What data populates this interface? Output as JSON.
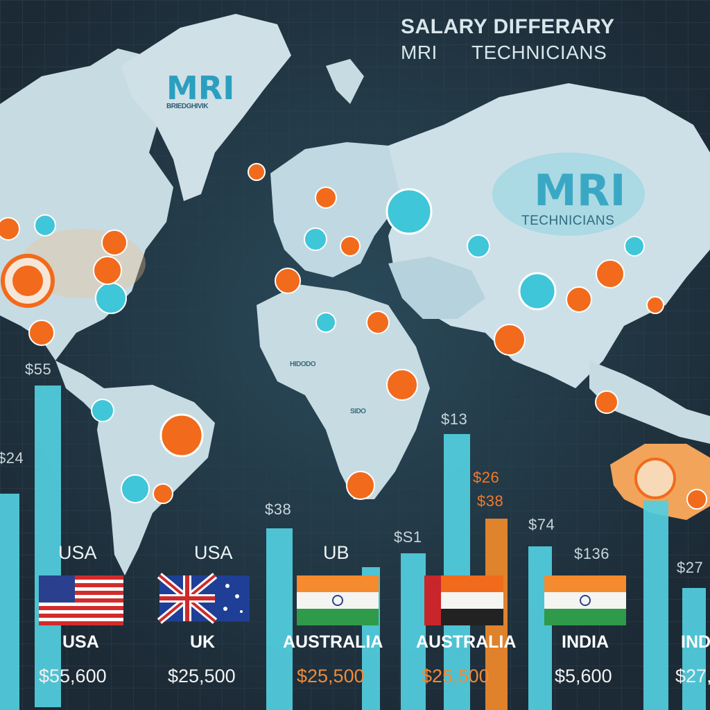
{
  "title": {
    "line1": "SALARY DIFFERARY",
    "line2": "MRI      TECHNICIANS"
  },
  "map_labels": {
    "greenland_mri": "MRI",
    "greenland_sub": "BRIEDGHIVIK",
    "asia_mri": "MRI",
    "asia_technicians": "TECHNICIANS",
    "africa_sub1": "HIDODO",
    "africa_sub2": "SIDO"
  },
  "colors": {
    "background": "#1f2e3a",
    "bar_teal": "#52cfe0",
    "bar_orange": "#f08a2a",
    "land": "#c9dde6",
    "marker_orange": "#f26a1b",
    "marker_teal": "#3fc6d8"
  },
  "chart_data": {
    "type": "bar",
    "bar_value_labels": [
      "$55",
      "$24",
      "$38",
      "$S1",
      "$13",
      "$26",
      "$38",
      "$74",
      "$136",
      "$27"
    ],
    "countries_top": [
      "USA",
      "USA",
      "UB",
      "",
      "",
      ""
    ],
    "countries_bottom": [
      "USA",
      "UK",
      "AUSTRALIA",
      "AUSTRALIA",
      "INDIA",
      "INDIA"
    ],
    "salaries": [
      "$55,600",
      "$25,500",
      "$25,500",
      "$25,500",
      "$5,600",
      "$27,"
    ],
    "flags": [
      "usa-flag",
      "uk-australia-flag",
      "india-flag",
      "uae-flag",
      "india-flag",
      ""
    ]
  }
}
